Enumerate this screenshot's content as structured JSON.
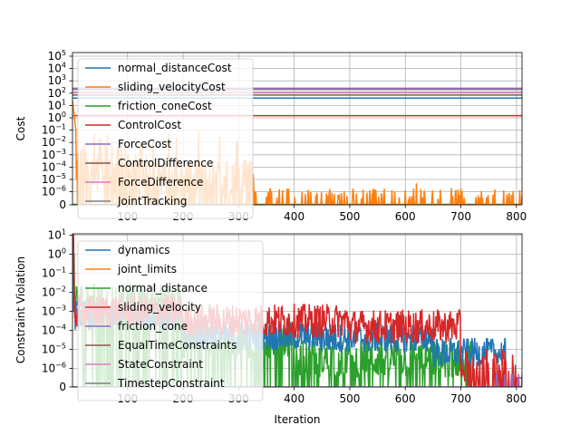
{
  "figure": {
    "background": "#ffffff"
  },
  "chart_data": [
    {
      "type": "line",
      "panel": "top",
      "xlabel": "",
      "ylabel": "Cost",
      "xlim": [
        1,
        810
      ],
      "ylim_description": "symlog: 0 to 1e5",
      "y_scale": "symlog",
      "x_ticks": [
        100,
        200,
        300,
        400,
        500,
        600,
        700,
        800
      ],
      "y_ticks": [
        {
          "base": "0",
          "exp": ""
        },
        {
          "base": "10",
          "exp": "−6"
        },
        {
          "base": "10",
          "exp": "−5"
        },
        {
          "base": "10",
          "exp": "−4"
        },
        {
          "base": "10",
          "exp": "−3"
        },
        {
          "base": "10",
          "exp": "−2"
        },
        {
          "base": "10",
          "exp": "−1"
        },
        {
          "base": "10",
          "exp": "0"
        },
        {
          "base": "10",
          "exp": "1"
        },
        {
          "base": "10",
          "exp": "2"
        },
        {
          "base": "10",
          "exp": "3"
        },
        {
          "base": "10",
          "exp": "4"
        },
        {
          "base": "10",
          "exp": "5"
        }
      ],
      "grid": true,
      "legend_position": "upper-left",
      "series": [
        {
          "name": "normal_distanceCost",
          "color": "#1f77b4",
          "level": 40
        },
        {
          "name": "sliding_velocityCost",
          "color": "#ff7f0e",
          "level": "spiky"
        },
        {
          "name": "friction_coneCost",
          "color": "#2ca02c",
          "level": 0
        },
        {
          "name": "ControlCost",
          "color": "#d62728",
          "level": 1.5
        },
        {
          "name": "ForceCost",
          "color": "#9467bd",
          "level": 250
        },
        {
          "name": "ControlDifference",
          "color": "#8c564b",
          "level": 70
        },
        {
          "name": "ForceDifference",
          "color": "#e377c2",
          "level": 120
        },
        {
          "name": "JointTracking",
          "color": "#7f7f7f",
          "level": 200
        }
      ]
    },
    {
      "type": "line",
      "panel": "bottom",
      "xlabel": "Iteration",
      "ylabel": "Constraint Violation",
      "xlim": [
        1,
        810
      ],
      "y_scale": "symlog",
      "x_ticks": [
        100,
        200,
        300,
        400,
        500,
        600,
        700,
        800
      ],
      "y_ticks": [
        {
          "base": "0",
          "exp": ""
        },
        {
          "base": "10",
          "exp": "−6"
        },
        {
          "base": "10",
          "exp": "−5"
        },
        {
          "base": "10",
          "exp": "−4"
        },
        {
          "base": "10",
          "exp": "−3"
        },
        {
          "base": "10",
          "exp": "−2"
        },
        {
          "base": "10",
          "exp": "−1"
        },
        {
          "base": "10",
          "exp": "0"
        },
        {
          "base": "10",
          "exp": "1"
        }
      ],
      "grid": true,
      "legend_position": "upper-left",
      "series": [
        {
          "name": "dynamics",
          "color": "#1f77b4"
        },
        {
          "name": "joint_limits",
          "color": "#ff7f0e"
        },
        {
          "name": "normal_distance",
          "color": "#2ca02c"
        },
        {
          "name": "sliding_velocity",
          "color": "#d62728"
        },
        {
          "name": "friction_cone",
          "color": "#9467bd"
        },
        {
          "name": "EqualTimeConstraints",
          "color": "#8c564b"
        },
        {
          "name": "StateConstraint",
          "color": "#e377c2"
        },
        {
          "name": "TimestepConstraint",
          "color": "#7f7f7f"
        }
      ]
    }
  ]
}
